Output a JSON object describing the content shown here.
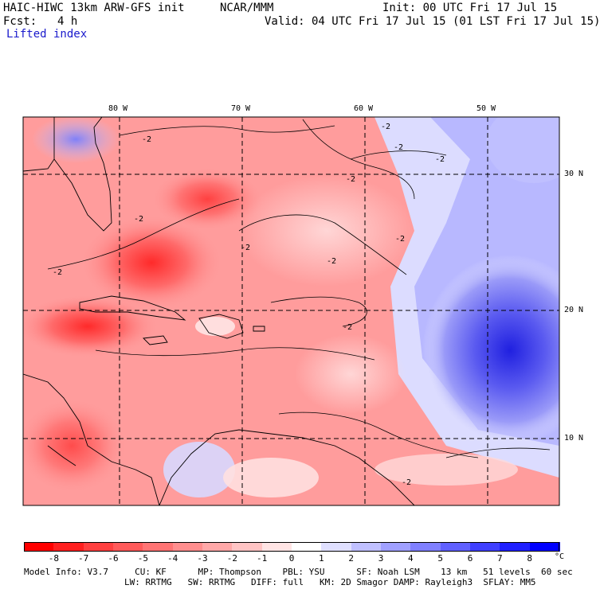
{
  "header": {
    "model": "HAIC-HIWC 13km ARW-GFS init",
    "org": "NCAR/MMM",
    "init": "Init: 00 UTC Fri 17 Jul 15",
    "fcst_label": "Fcst:",
    "fcst_value": "4 h",
    "valid": "Valid: 04 UTC Fri 17 Jul 15 (01 LST Fri 17 Jul 15)",
    "field": "Lifted index"
  },
  "map": {
    "lon_labels": [
      "80 W",
      "70 W",
      "60 W",
      "50 W"
    ],
    "lat_labels": [
      "30 N",
      "20 N",
      "10 N"
    ],
    "contour_label": "-2"
  },
  "colorbar": {
    "unit": "°C",
    "ticks": [
      "-8",
      "-7",
      "-6",
      "-5",
      "-4",
      "-3",
      "-2",
      "-1",
      "0",
      "1",
      "2",
      "3",
      "4",
      "5",
      "6",
      "7",
      "8"
    ],
    "colors": [
      "#ff0000",
      "#ff2020",
      "#ff4040",
      "#ff5a5a",
      "#ff7474",
      "#ff8e8e",
      "#ffa8a8",
      "#ffc4c4",
      "#ffe4e4",
      "#ffffff",
      "#e0e0ff",
      "#c0c0ff",
      "#a0a0ff",
      "#8080ff",
      "#6060ff",
      "#4040ff",
      "#2020ff",
      "#0000ff"
    ]
  },
  "footer": {
    "line1": "Model Info: V3.7     CU: KF      MP: Thompson    PBL: YSU      SF: Noah LSM    13 km   51 levels  60 sec",
    "line2": "LW: RRTMG   SW: RRTMG   DIFF: full   KM: 2D Smagor DAMP: Rayleigh3  SFLAY: MM5"
  }
}
